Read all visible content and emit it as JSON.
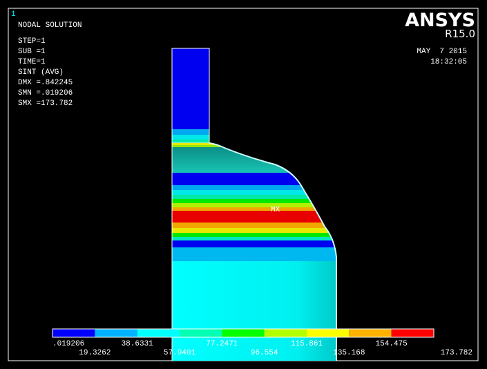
{
  "window": {
    "number": "1"
  },
  "info": {
    "title": "NODAL SOLUTION",
    "lines": [
      "STEP=1",
      "SUB =1",
      "TIME=1",
      "SINT      (AVG)",
      "DMX =.842245",
      "SMN =.019206",
      "SMX =173.782"
    ]
  },
  "brand": {
    "name": "ANSYS",
    "version": "R15.0",
    "date": "MAY  7 2015",
    "time": "18:32:05"
  },
  "plot": {
    "max_label": "MX"
  },
  "legend": {
    "colors": [
      "#0000ff",
      "#00b2ff",
      "#00ffff",
      "#00ffb2",
      "#00ff00",
      "#b2ff00",
      "#ffff00",
      "#ffb200",
      "#ff0000"
    ],
    "labels": [
      ".019206",
      "19.3262",
      "38.6331",
      "57.9401",
      "77.2471",
      "96.554",
      "115.861",
      "135.168",
      "154.475",
      "173.782"
    ]
  }
}
